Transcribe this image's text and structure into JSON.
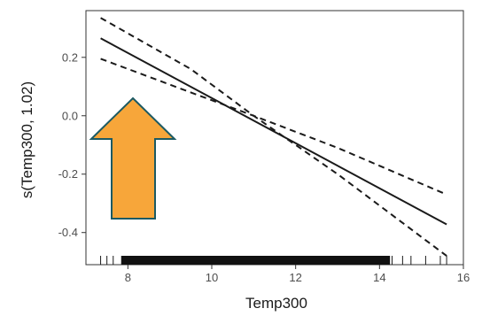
{
  "chart_data": {
    "type": "line",
    "xlabel": "Temp300",
    "ylabel": "s(Temp300, 1.02)",
    "xlim": [
      7.0,
      16.0
    ],
    "ylim": [
      -0.51,
      0.36
    ],
    "x_ticks": [
      8,
      10,
      12,
      14,
      16
    ],
    "y_ticks": [
      0.2,
      0.0,
      -0.2,
      -0.4
    ],
    "x_tick_labels": [
      "8",
      "10",
      "12",
      "14",
      "16"
    ],
    "y_tick_labels": [
      "0.2",
      "0.0",
      "-0.2",
      "-0.4"
    ],
    "grid": false,
    "series": [
      {
        "style": "solid",
        "x": [
          7.35,
          15.6
        ],
        "y": [
          0.265,
          -0.372
        ]
      },
      {
        "style": "dashed",
        "x": [
          7.35,
          9.5,
          11.0,
          13.0,
          15.6
        ],
        "y": [
          0.335,
          0.16,
          0.0,
          -0.2,
          -0.48
        ]
      },
      {
        "style": "dashed",
        "x": [
          7.35,
          9.5,
          11.0,
          13.0,
          15.6
        ],
        "y": [
          0.195,
          0.08,
          0.0,
          -0.11,
          -0.27
        ]
      }
    ],
    "rug": {
      "sparse": [
        7.35,
        7.5,
        7.65,
        7.85,
        8.05,
        14.3,
        14.55,
        14.75,
        15.1,
        15.45,
        15.6
      ],
      "dense_range": [
        7.85,
        14.25
      ]
    },
    "annotation": {
      "shape": "up-arrow",
      "fill": "#f7a63a",
      "stroke": "#1c5a63"
    },
    "colors": {
      "line": "#1a1a1a",
      "axis": "#333333"
    }
  }
}
